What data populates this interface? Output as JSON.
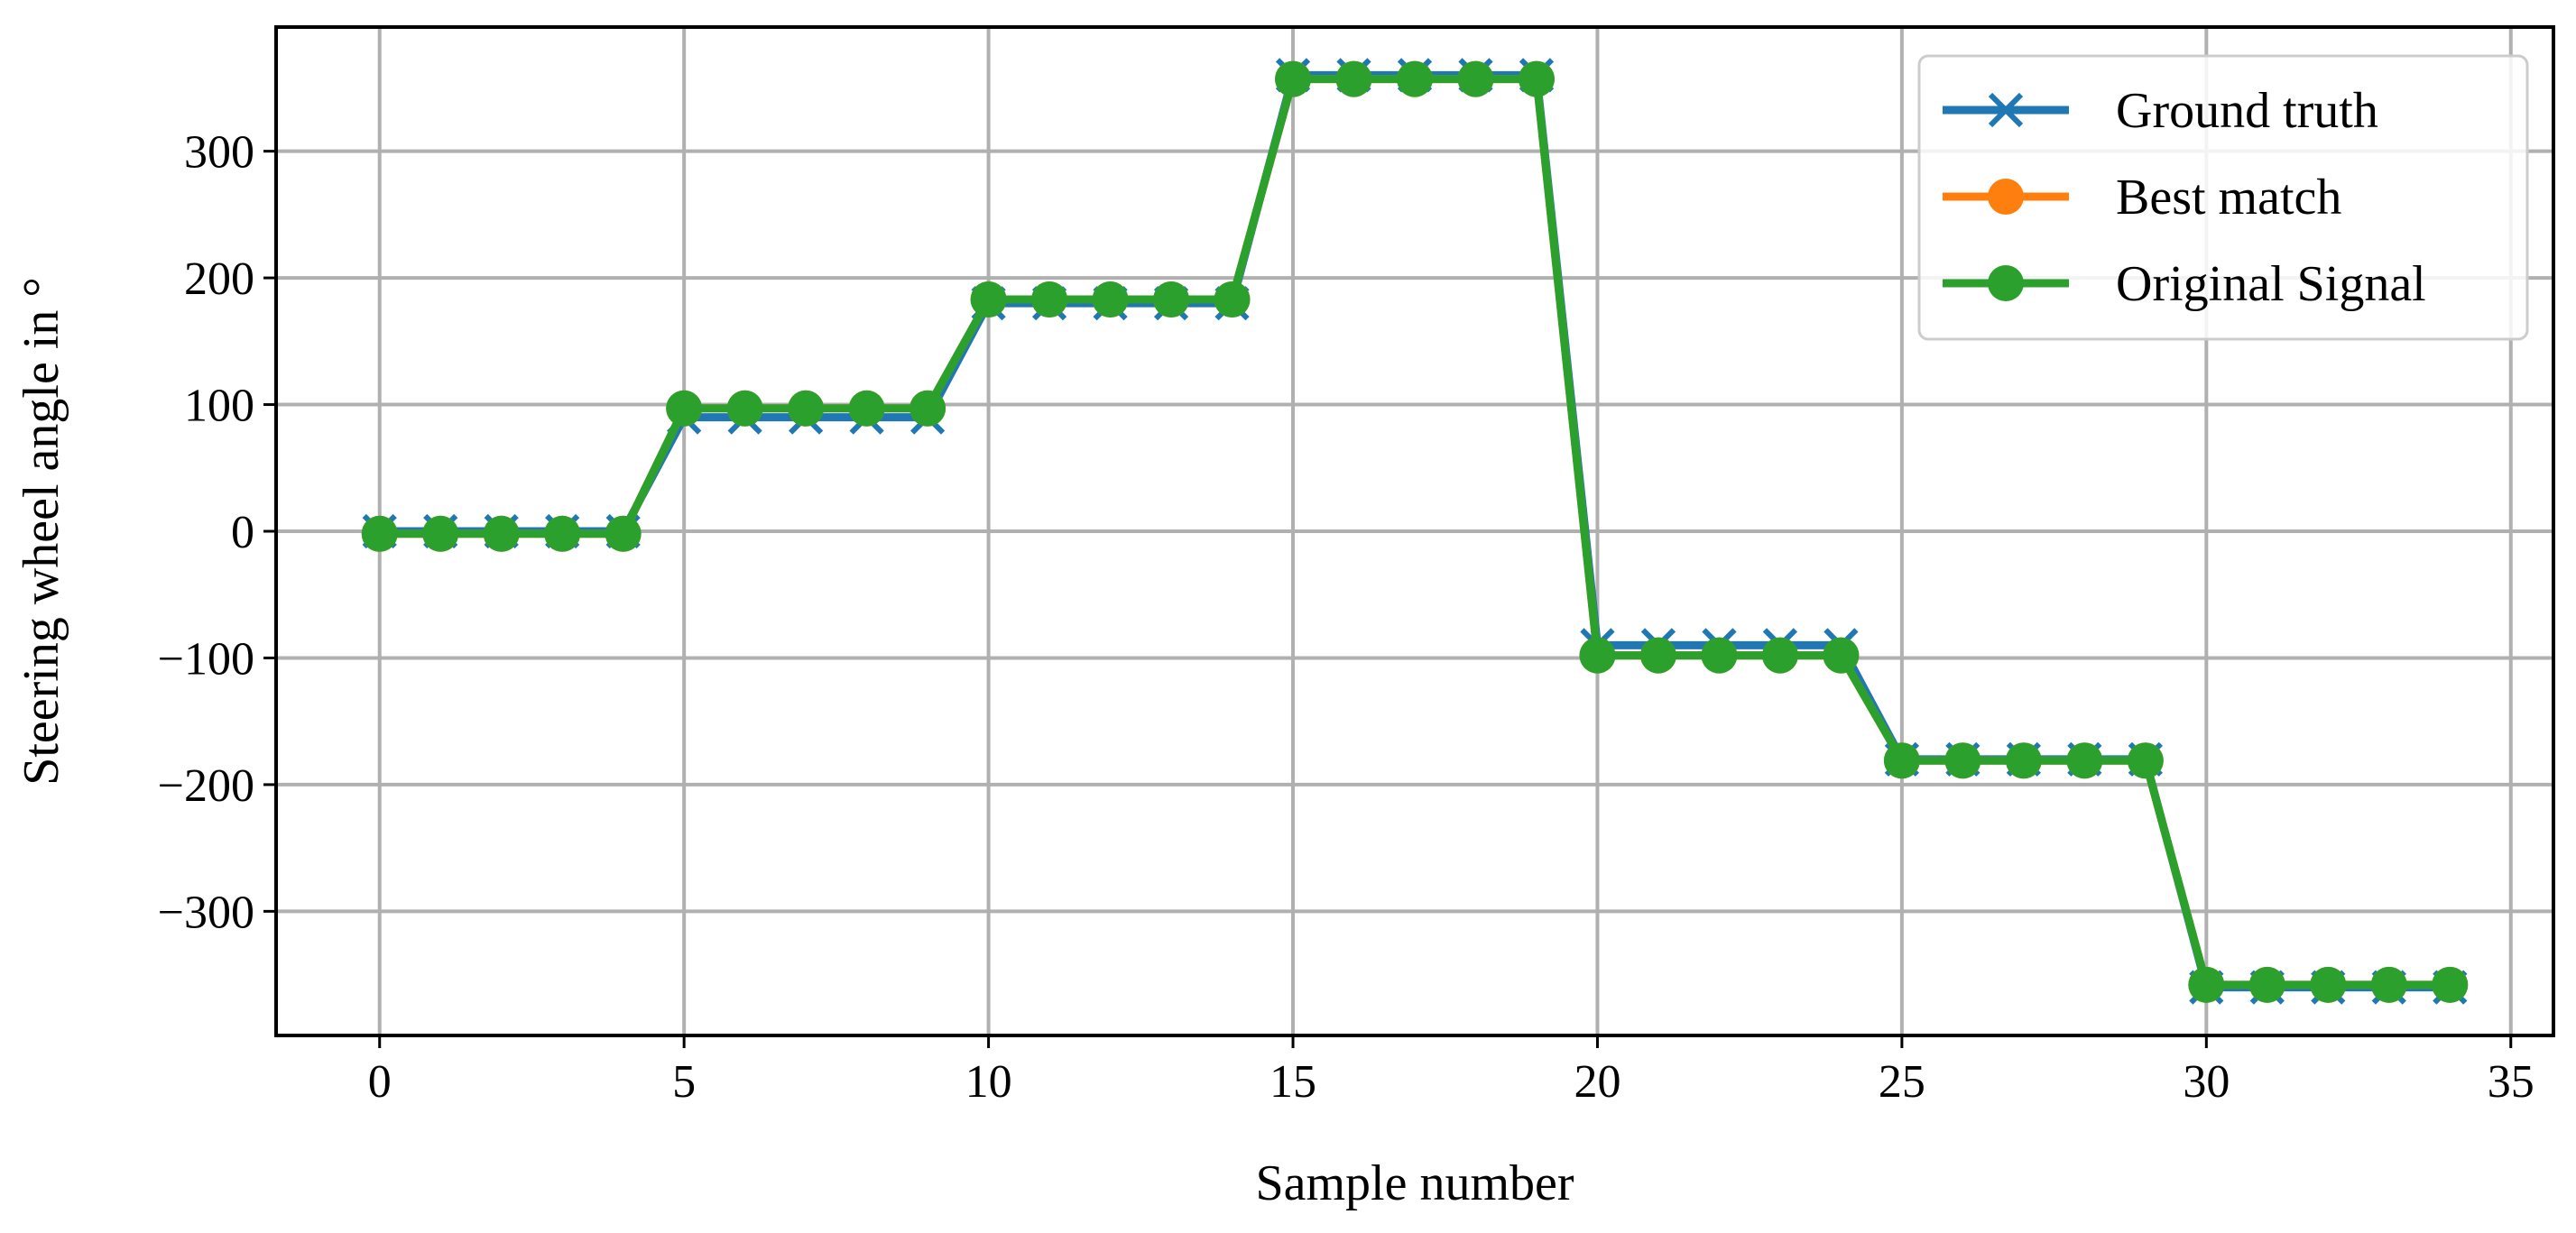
{
  "chart_data": {
    "type": "line",
    "title": "",
    "xlabel": "Sample number",
    "ylabel": "Steering wheel angle in °",
    "xlim": [
      -1.7,
      35.7
    ],
    "ylim": [
      -398,
      398
    ],
    "x_ticks": [
      0,
      5,
      10,
      15,
      20,
      25,
      30,
      35
    ],
    "x_tick_labels": [
      "0",
      "5",
      "10",
      "15",
      "20",
      "25",
      "30",
      "35"
    ],
    "y_ticks": [
      -300,
      -200,
      -100,
      0,
      100,
      200,
      300
    ],
    "y_tick_labels": [
      "−300",
      "−200",
      "−100",
      "0",
      "100",
      "200",
      "300"
    ],
    "grid": true,
    "legend_position": "top-right",
    "x": [
      0,
      1,
      2,
      3,
      4,
      5,
      6,
      7,
      8,
      9,
      10,
      11,
      12,
      13,
      14,
      15,
      16,
      17,
      18,
      19,
      20,
      21,
      22,
      23,
      24,
      25,
      26,
      27,
      28,
      29,
      30,
      31,
      32,
      33,
      34
    ],
    "series": [
      {
        "name": "Ground truth",
        "color": "#1f77b4",
        "marker": "x",
        "values": [
          0,
          0,
          0,
          0,
          0,
          90,
          90,
          90,
          90,
          90,
          180,
          180,
          180,
          180,
          180,
          360,
          360,
          360,
          360,
          360,
          -90,
          -90,
          -90,
          -90,
          -90,
          -180,
          -180,
          -180,
          -180,
          -180,
          -360,
          -360,
          -360,
          -360,
          -360
        ]
      },
      {
        "name": "Best match",
        "color": "#ff7f0e",
        "marker": "o",
        "values": [
          -2,
          -2,
          -2,
          -2,
          -2,
          97,
          97,
          97,
          97,
          97,
          183,
          183,
          183,
          183,
          183,
          357,
          357,
          357,
          357,
          357,
          -98,
          -98,
          -98,
          -98,
          -98,
          -181,
          -181,
          -181,
          -181,
          -181,
          -358,
          -358,
          -358,
          -358,
          -358
        ]
      },
      {
        "name": "Original Signal",
        "color": "#2ca02c",
        "marker": "o",
        "values": [
          -2,
          -2,
          -2,
          -2,
          -2,
          97,
          97,
          97,
          97,
          97,
          183,
          183,
          183,
          183,
          183,
          357,
          357,
          357,
          357,
          357,
          -98,
          -98,
          -98,
          -98,
          -98,
          -181,
          -181,
          -181,
          -181,
          -181,
          -358,
          -358,
          -358,
          -358,
          -358
        ]
      }
    ]
  }
}
